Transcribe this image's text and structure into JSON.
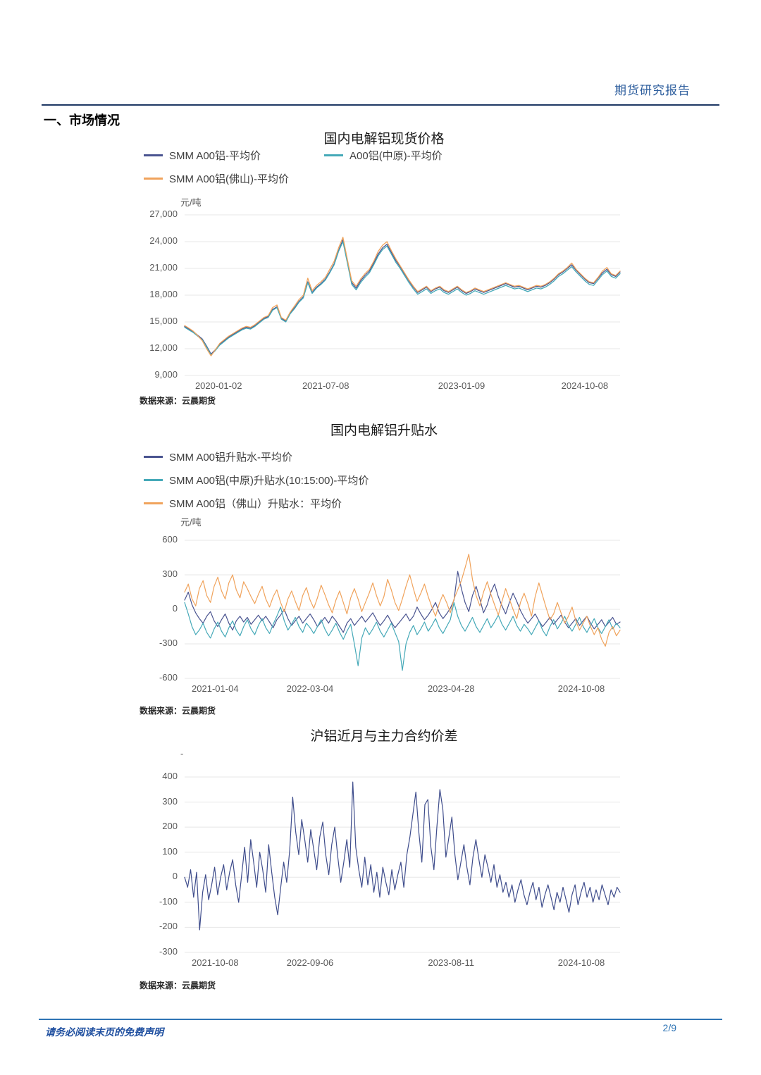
{
  "header": {
    "title": "期货研究报告"
  },
  "section": {
    "title": "一、市场情况"
  },
  "captions": [
    "数据来源：云晨期货",
    "数据来源：云晨期货",
    "数据来源：云晨期货"
  ],
  "footer": {
    "disclaimer": "请务必阅读末页的免费声明",
    "page": "2/9"
  },
  "chart_data": [
    {
      "type": "line",
      "title": "国内电解铝现货价格",
      "unit": "元/吨",
      "ylim": [
        9000,
        27000
      ],
      "yticks": [
        27000,
        24000,
        21000,
        18000,
        15000,
        12000,
        9000
      ],
      "ytick_labels": [
        "27,000",
        "24,000",
        "21,000",
        "18,000",
        "15,000",
        "12,000",
        "9,000"
      ],
      "xticks": [
        {
          "pos": 0.078,
          "label": "2020-01-02"
        },
        {
          "pos": 0.324,
          "label": "2021-07-08"
        },
        {
          "pos": 0.636,
          "label": "2023-01-09"
        },
        {
          "pos": 0.919,
          "label": "2024-10-08"
        }
      ],
      "grid": true,
      "legend_position": "top",
      "line_width": 1.3,
      "series": [
        {
          "name": "SMM A00铝-平均价",
          "color": "#4a5490",
          "values": [
            14500,
            14200,
            13900,
            13500,
            13100,
            12300,
            11400,
            11900,
            12500,
            12900,
            13300,
            13600,
            13900,
            14200,
            14400,
            14300,
            14600,
            15000,
            15400,
            15600,
            16400,
            16700,
            15400,
            15100,
            16000,
            16600,
            17300,
            17800,
            19500,
            18300,
            18900,
            19300,
            19800,
            20600,
            21500,
            23000,
            24200,
            21800,
            19400,
            18800,
            19600,
            20200,
            20700,
            21600,
            22600,
            23300,
            23700,
            22800,
            21900,
            21200,
            20400,
            19600,
            18900,
            18300,
            18600,
            18900,
            18400,
            18700,
            18900,
            18500,
            18300,
            18600,
            18900,
            18500,
            18200,
            18400,
            18700,
            18500,
            18300,
            18500,
            18700,
            18900,
            19100,
            19300,
            19100,
            18900,
            19000,
            18800,
            18600,
            18800,
            19000,
            18900,
            19100,
            19400,
            19800,
            20300,
            20600,
            21000,
            21400,
            20800,
            20300,
            19800,
            19400,
            19300,
            19900,
            20500,
            20900,
            20300,
            20100,
            20600
          ]
        },
        {
          "name": "A00铝(中原)-平均价",
          "color": "#45a9b8",
          "values": [
            14400,
            14100,
            13800,
            13400,
            13000,
            12200,
            11300,
            11800,
            12400,
            12800,
            13200,
            13500,
            13800,
            14100,
            14300,
            14200,
            14500,
            14900,
            15300,
            15500,
            16300,
            16600,
            15300,
            15000,
            15900,
            16500,
            17200,
            17700,
            19400,
            18200,
            18800,
            19200,
            19700,
            20500,
            21400,
            22900,
            24000,
            21600,
            19200,
            18600,
            19400,
            20000,
            20500,
            21400,
            22400,
            23100,
            23500,
            22600,
            21700,
            21000,
            20200,
            19400,
            18700,
            18100,
            18400,
            18700,
            18200,
            18500,
            18700,
            18300,
            18100,
            18400,
            18700,
            18300,
            18000,
            18200,
            18500,
            18300,
            18100,
            18300,
            18500,
            18700,
            18900,
            19100,
            18900,
            18700,
            18800,
            18600,
            18400,
            18600,
            18800,
            18700,
            18900,
            19200,
            19600,
            20100,
            20400,
            20800,
            21200,
            20600,
            20100,
            19600,
            19200,
            19100,
            19700,
            20300,
            20700,
            20100,
            19900,
            20400
          ]
        },
        {
          "name": "SMM A00铝(佛山)-平均价",
          "color": "#f0a35c",
          "values": [
            14600,
            14300,
            13950,
            13450,
            12900,
            12000,
            11200,
            11900,
            12600,
            13000,
            13400,
            13700,
            14000,
            14300,
            14500,
            14400,
            14700,
            15100,
            15500,
            15700,
            16600,
            16900,
            15500,
            15200,
            16100,
            16800,
            17500,
            18000,
            19900,
            18500,
            19100,
            19500,
            20000,
            20900,
            21800,
            23300,
            24500,
            22000,
            19600,
            19000,
            19800,
            20400,
            20900,
            21800,
            22900,
            23600,
            24000,
            23000,
            22100,
            21300,
            20500,
            19700,
            19000,
            18400,
            18700,
            19000,
            18500,
            18800,
            19000,
            18600,
            18400,
            18700,
            19000,
            18600,
            18300,
            18500,
            18800,
            18600,
            18400,
            18600,
            18800,
            19000,
            19200,
            19400,
            19200,
            19000,
            19100,
            18900,
            18700,
            18900,
            19100,
            19000,
            19200,
            19500,
            19900,
            20400,
            20700,
            21100,
            21600,
            20900,
            20400,
            19900,
            19500,
            19400,
            20000,
            20700,
            21100,
            20400,
            20200,
            20700
          ]
        }
      ]
    },
    {
      "type": "line",
      "title": "国内电解铝升贴水",
      "unit": "元/吨",
      "ylim": [
        -600,
        600
      ],
      "yticks": [
        600,
        300,
        0,
        -300,
        -600
      ],
      "ytick_labels": [
        "600",
        "300",
        "0",
        "-300",
        "-600"
      ],
      "xticks": [
        {
          "pos": 0.07,
          "label": "2021-01-04"
        },
        {
          "pos": 0.288,
          "label": "2022-03-04"
        },
        {
          "pos": 0.612,
          "label": "2023-04-28"
        },
        {
          "pos": 0.911,
          "label": "2024-10-08"
        }
      ],
      "grid": true,
      "legend_position": "top",
      "line_width": 1.2,
      "series": [
        {
          "name": "SMM A00铝升贴水-平均价",
          "color": "#4a5490",
          "values": [
            80,
            150,
            40,
            -30,
            -80,
            -120,
            -60,
            -20,
            -100,
            -150,
            -90,
            -40,
            -120,
            -180,
            -100,
            -60,
            -110,
            -70,
            -130,
            -90,
            -50,
            -100,
            -60,
            -110,
            -160,
            -90,
            -50,
            0,
            -80,
            -140,
            -100,
            -60,
            -120,
            -80,
            -40,
            -90,
            -150,
            -110,
            -70,
            -120,
            -60,
            -100,
            -150,
            -200,
            -120,
            -80,
            -140,
            -100,
            -60,
            -110,
            -70,
            -30,
            -90,
            -140,
            -100,
            -50,
            -110,
            -160,
            -120,
            -80,
            -40,
            -100,
            -60,
            20,
            -40,
            -90,
            -50,
            0,
            60,
            -30,
            -80,
            -40,
            10,
            80,
            330,
            180,
            60,
            -20,
            120,
            200,
            90,
            -30,
            40,
            150,
            220,
            110,
            30,
            -40,
            60,
            140,
            70,
            -10,
            -70,
            -120,
            -80,
            -40,
            -100,
            -150,
            -110,
            -70,
            -130,
            -90,
            -50,
            -110,
            -160,
            -120,
            -80,
            -140,
            -100,
            -60,
            -120,
            -170,
            -130,
            -90,
            -150,
            -110,
            -70,
            -130,
            -110
          ]
        },
        {
          "name": "SMM A00铝(中原)升贴水(10:15:00)-平均价",
          "color": "#45a9b8",
          "values": [
            60,
            -40,
            -150,
            -220,
            -180,
            -120,
            -200,
            -250,
            -170,
            -110,
            -190,
            -240,
            -160,
            -100,
            -180,
            -230,
            -150,
            -90,
            -170,
            -220,
            -140,
            -80,
            -160,
            -210,
            -130,
            -60,
            20,
            -100,
            -180,
            -130,
            -70,
            -150,
            -200,
            -120,
            -160,
            -210,
            -150,
            -90,
            -170,
            -230,
            -180,
            -120,
            -200,
            -260,
            -190,
            -130,
            -300,
            -490,
            -250,
            -160,
            -220,
            -170,
            -110,
            -190,
            -240,
            -180,
            -120,
            -200,
            -280,
            -530,
            -300,
            -200,
            -140,
            -220,
            -170,
            -110,
            -190,
            -140,
            -80,
            -160,
            -210,
            -150,
            -90,
            60,
            -60,
            -140,
            -190,
            -130,
            -70,
            -150,
            -200,
            -140,
            -80,
            -160,
            -110,
            -50,
            -130,
            -180,
            -120,
            -60,
            -140,
            -190,
            -130,
            -170,
            -220,
            -160,
            -100,
            -180,
            -230,
            -150,
            -90,
            -170,
            -120,
            -60,
            -140,
            -190,
            -130,
            -70,
            -150,
            -200,
            -140,
            -80,
            -160,
            -210,
            -150,
            -90,
            -170,
            -120,
            -160
          ]
        },
        {
          "name": "SMM A00铝（佛山）升贴水：平均价",
          "color": "#f0a35c",
          "values": [
            150,
            220,
            90,
            30,
            180,
            250,
            120,
            60,
            200,
            280,
            160,
            90,
            230,
            300,
            170,
            100,
            240,
            180,
            110,
            50,
            130,
            200,
            90,
            20,
            110,
            170,
            60,
            -20,
            90,
            160,
            70,
            -10,
            120,
            190,
            80,
            10,
            100,
            210,
            130,
            40,
            -30,
            80,
            160,
            60,
            -40,
            100,
            180,
            90,
            -20,
            60,
            140,
            230,
            120,
            30,
            110,
            260,
            170,
            60,
            -10,
            90,
            200,
            300,
            180,
            70,
            140,
            220,
            110,
            20,
            -60,
            50,
            130,
            60,
            -30,
            90,
            170,
            250,
            360,
            480,
            260,
            120,
            30,
            150,
            240,
            130,
            40,
            -50,
            70,
            180,
            90,
            0,
            -80,
            60,
            140,
            50,
            -60,
            110,
            230,
            120,
            10,
            -90,
            -40,
            60,
            -30,
            -120,
            -60,
            20,
            -100,
            -180,
            -120,
            -60,
            -150,
            -220,
            -160,
            -260,
            -320,
            -200,
            -150,
            -230,
            -180
          ]
        }
      ]
    },
    {
      "type": "line",
      "title": "沪铝近月与主力合约价差",
      "unit": "-",
      "ylim": [
        -300,
        400
      ],
      "yticks": [
        400,
        300,
        200,
        100,
        0,
        -100,
        -200,
        -300
      ],
      "ytick_labels": [
        "400",
        "300",
        "200",
        "100",
        "0",
        "-100",
        "-200",
        "-300"
      ],
      "xticks": [
        {
          "pos": 0.07,
          "label": "2021-10-08"
        },
        {
          "pos": 0.288,
          "label": "2022-09-06"
        },
        {
          "pos": 0.612,
          "label": "2023-08-11"
        },
        {
          "pos": 0.911,
          "label": "2024-10-08"
        }
      ],
      "grid": true,
      "legend_position": "none",
      "line_width": 1.2,
      "series": [
        {
          "name": "",
          "color": "#3f4d8c",
          "values": [
            0,
            -40,
            30,
            -80,
            20,
            -210,
            -60,
            10,
            -90,
            -30,
            40,
            -70,
            0,
            50,
            -50,
            20,
            70,
            -30,
            -100,
            10,
            120,
            -20,
            150,
            60,
            -40,
            100,
            30,
            -60,
            130,
            20,
            -80,
            -150,
            -40,
            60,
            -20,
            110,
            320,
            180,
            90,
            230,
            150,
            60,
            190,
            110,
            30,
            160,
            220,
            90,
            10,
            130,
            200,
            80,
            -20,
            60,
            150,
            40,
            380,
            120,
            30,
            -40,
            80,
            -30,
            50,
            -60,
            20,
            -80,
            40,
            -20,
            -70,
            30,
            -50,
            10,
            60,
            -40,
            90,
            160,
            250,
            340,
            180,
            60,
            290,
            310,
            120,
            30,
            200,
            350,
            270,
            80,
            160,
            240,
            90,
            -10,
            60,
            130,
            40,
            -30,
            80,
            150,
            70,
            0,
            90,
            40,
            -20,
            50,
            -40,
            10,
            -60,
            -20,
            -80,
            -30,
            -100,
            -50,
            -10,
            -70,
            -110,
            -60,
            -20,
            -90,
            -40,
            -120,
            -70,
            -30,
            -80,
            -130,
            -60,
            -100,
            -40,
            -90,
            -140,
            -70,
            -30,
            -110,
            -60,
            -20,
            -80,
            -40,
            -100,
            -50,
            -90,
            -30,
            -70,
            -110,
            -50,
            -80,
            -40,
            -60
          ]
        }
      ]
    }
  ]
}
